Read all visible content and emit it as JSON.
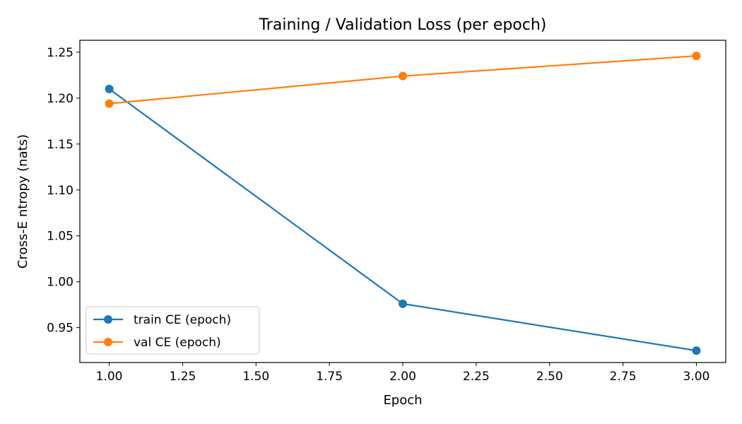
{
  "chart_data": {
    "type": "line",
    "title": "Training / Validation Loss (per epoch)",
    "xlabel": "Epoch",
    "ylabel": "Cross-E ntropy (nats)",
    "xlim": [
      0.9,
      3.1
    ],
    "ylim": [
      0.912,
      1.263
    ],
    "x_ticks": [
      1.0,
      1.25,
      1.5,
      1.75,
      2.0,
      2.25,
      2.5,
      2.75,
      3.0
    ],
    "x_tick_labels": [
      "1.00",
      "1.25",
      "1.50",
      "1.75",
      "2.00",
      "2.25",
      "2.50",
      "2.75",
      "3.00"
    ],
    "y_ticks": [
      0.95,
      1.0,
      1.05,
      1.1,
      1.15,
      1.2,
      1.25
    ],
    "y_tick_labels": [
      "0.95",
      "1.00",
      "1.05",
      "1.10",
      "1.15",
      "1.20",
      "1.25"
    ],
    "grid": false,
    "legend_position": "lower-left",
    "series": [
      {
        "name": "train CE (epoch)",
        "color": "#1f77b4",
        "x": [
          1,
          2,
          3
        ],
        "y": [
          1.21,
          0.976,
          0.925
        ]
      },
      {
        "name": "val CE (epoch)",
        "color": "#ff7f0e",
        "x": [
          1,
          2,
          3
        ],
        "y": [
          1.194,
          1.224,
          1.246
        ]
      }
    ]
  }
}
